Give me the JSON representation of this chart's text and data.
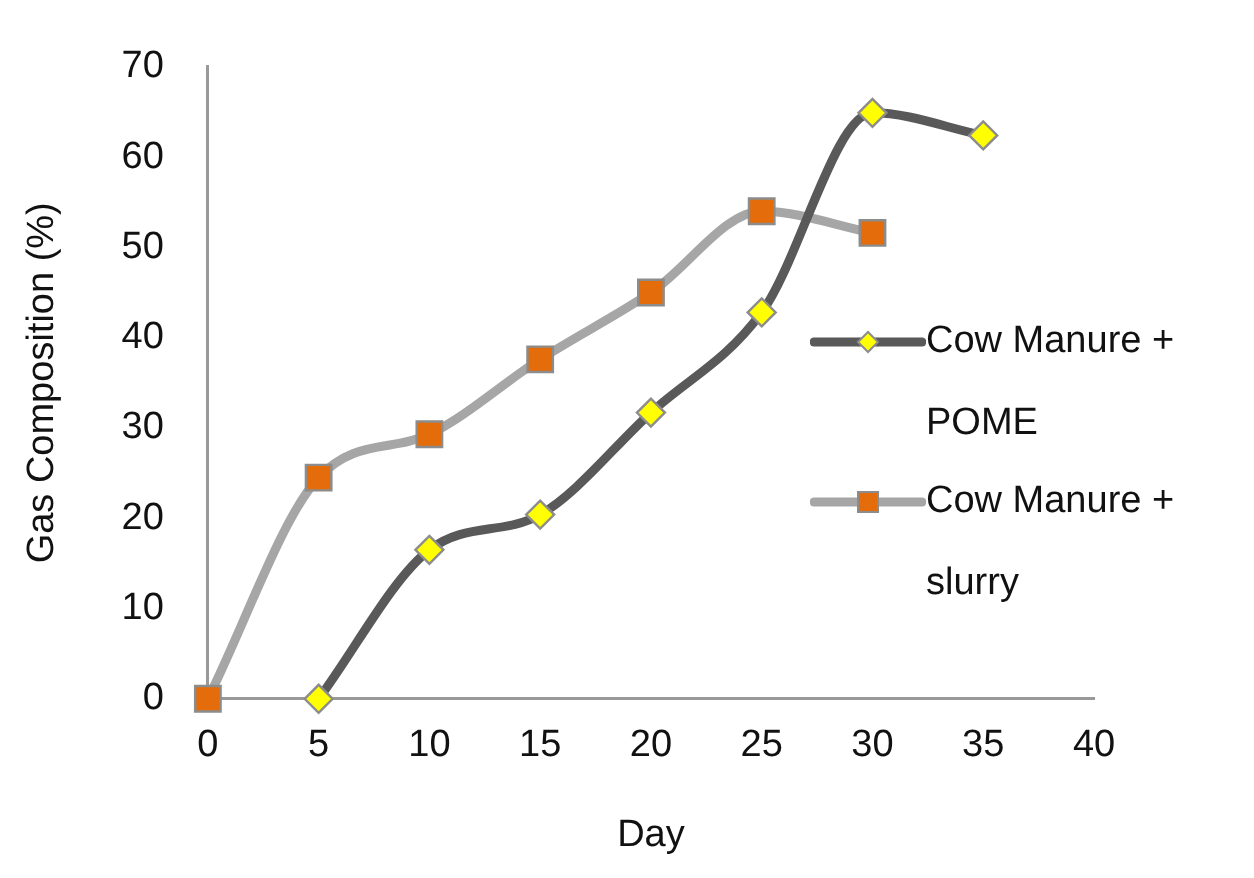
{
  "chart_data": {
    "type": "line",
    "xlabel": "Day",
    "ylabel": "Gas Composition (%)",
    "xlim": [
      0,
      40
    ],
    "xticks": [
      0,
      5,
      10,
      15,
      20,
      25,
      30,
      35,
      40
    ],
    "ylim": [
      0,
      70
    ],
    "yticks": [
      0,
      10,
      20,
      30,
      40,
      50,
      60,
      70
    ],
    "grid": false,
    "legend": "right",
    "series": [
      {
        "name": "Cow Manure + POME",
        "color": "#595959",
        "marker": "diamond",
        "colors": [
          "#ffff00",
          "#ffff00",
          "#ffff00",
          "#ffff00",
          "#ffff00",
          "#ffff00",
          "#ffff00"
        ],
        "x": [
          5,
          10,
          15,
          20,
          25,
          30,
          35
        ],
        "values": [
          0,
          16.5,
          20.4,
          31.7,
          42.8,
          64.9,
          62.4
        ]
      },
      {
        "name": "Cow Manure + slurry",
        "color": "#a6a6a6",
        "marker": "square",
        "colors": [
          "#e46c0a",
          "#e46c0a",
          "#e46c0a",
          "#e46c0a",
          "#e46c0a",
          "#e46c0a",
          "#e46c0a"
        ],
        "x": [
          0,
          5,
          10,
          15,
          20,
          25,
          30
        ],
        "values": [
          0,
          24.5,
          29.3,
          37.6,
          45,
          54,
          51.6
        ]
      }
    ]
  }
}
